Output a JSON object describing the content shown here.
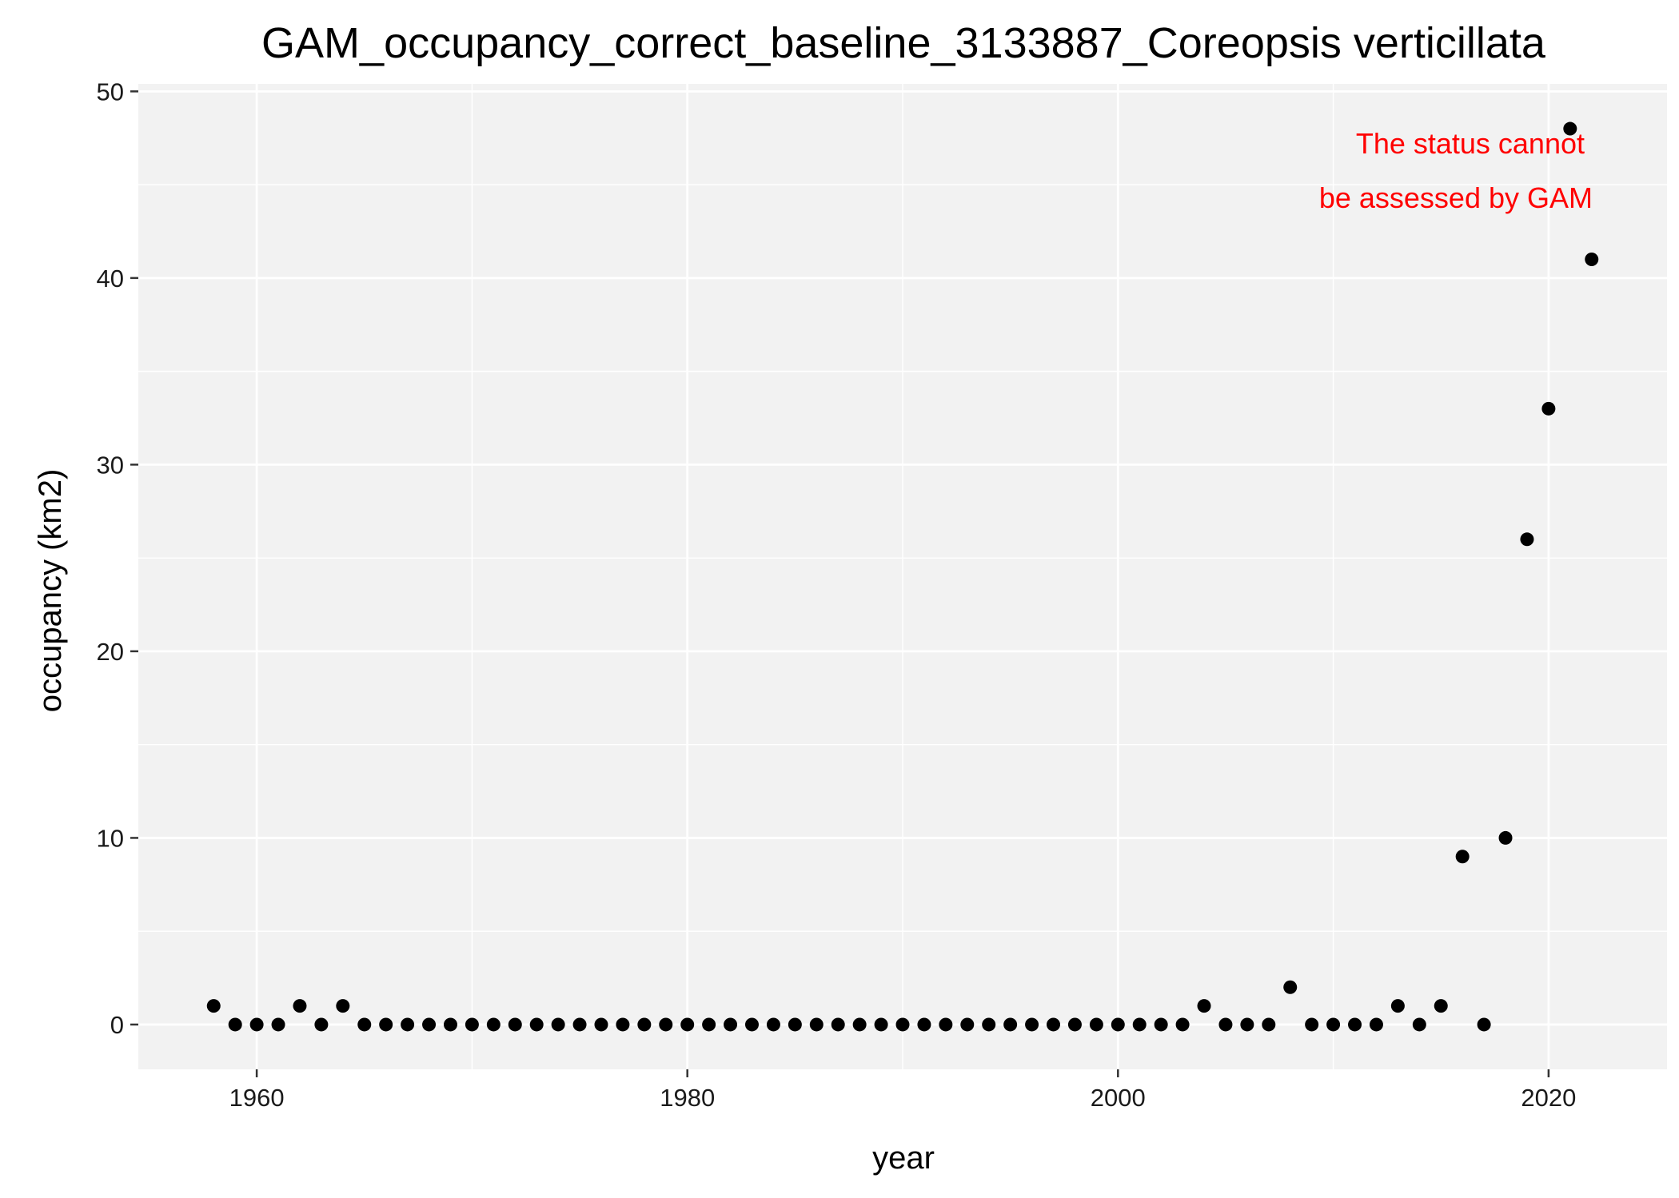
{
  "chart_data": {
    "type": "scatter",
    "title": "GAM_occupancy_correct_baseline_3133887_Coreopsis verticillata",
    "xlabel": "year",
    "ylabel": "occupancy (km2)",
    "xlim": [
      1954.5,
      2025.5
    ],
    "ylim": [
      -2.4,
      50.4
    ],
    "x_ticks": [
      1960,
      1980,
      2000,
      2020
    ],
    "x_minor_ticks": [
      1970,
      1990,
      2010
    ],
    "y_ticks": [
      0,
      10,
      20,
      30,
      40,
      50
    ],
    "y_minor_ticks": [
      5,
      15,
      25,
      35,
      45
    ],
    "grid": true,
    "background": "#f2f2f2",
    "point_color": "#000000",
    "annotation": {
      "lines": [
        "The status cannot",
        "be assessed by GAM"
      ],
      "color": "#ff0000",
      "placement": "top-right"
    },
    "series": [
      {
        "x": [
          1958,
          1959,
          1960,
          1961,
          1962,
          1963,
          1964,
          1965,
          1966,
          1967,
          1968,
          1969,
          1970,
          1971,
          1972,
          1973,
          1974,
          1975,
          1976,
          1977,
          1978,
          1979,
          1980,
          1981,
          1982,
          1983,
          1984,
          1985,
          1986,
          1987,
          1988,
          1989,
          1990,
          1991,
          1992,
          1993,
          1994,
          1995,
          1996,
          1997,
          1998,
          1999,
          2000,
          2001,
          2002,
          2003,
          2004,
          2005,
          2006,
          2007,
          2008,
          2009,
          2010,
          2011,
          2012,
          2013,
          2014,
          2015,
          2016,
          2017,
          2018,
          2019,
          2020,
          2021,
          2022
        ],
        "y": [
          1,
          0,
          0,
          0,
          1,
          0,
          1,
          0,
          0,
          0,
          0,
          0,
          0,
          0,
          0,
          0,
          0,
          0,
          0,
          0,
          0,
          0,
          0,
          0,
          0,
          0,
          0,
          0,
          0,
          0,
          0,
          0,
          0,
          0,
          0,
          0,
          0,
          0,
          0,
          0,
          0,
          0,
          0,
          0,
          0,
          0,
          1,
          0,
          0,
          0,
          2,
          0,
          0,
          0,
          0,
          1,
          0,
          1,
          9,
          0,
          10,
          26,
          33,
          48,
          41
        ]
      }
    ]
  }
}
